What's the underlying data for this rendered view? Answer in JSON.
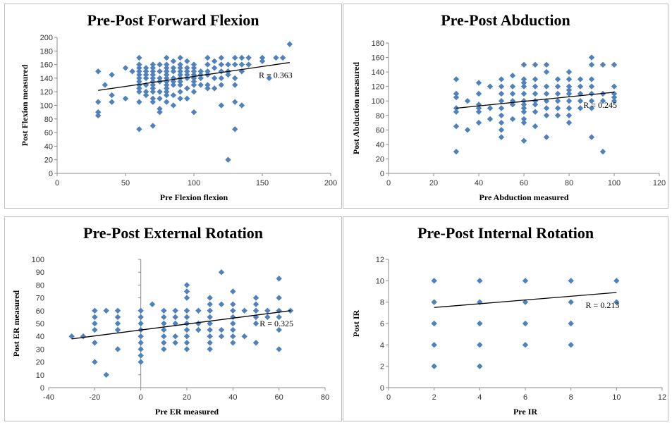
{
  "colors": {
    "marker": "#4f81bd",
    "trend": "#000000",
    "axis": "#8c8c8c"
  },
  "chart_data": [
    {
      "type": "scatter",
      "title": "Pre-Post Forward Flexion",
      "xlabel": "Pre Flexion flexion",
      "ylabel": "Post Flexion measured",
      "xlim": [
        0,
        200
      ],
      "ylim": [
        0,
        200
      ],
      "xticks": [
        0,
        50,
        100,
        150,
        200
      ],
      "yticks": [
        0,
        20,
        40,
        60,
        80,
        100,
        120,
        140,
        160,
        180,
        200
      ],
      "annotation": "R = 0.363",
      "trend": [
        [
          30,
          122
        ],
        [
          170,
          163
        ]
      ],
      "points": [
        [
          30,
          150
        ],
        [
          30,
          105
        ],
        [
          30,
          90
        ],
        [
          30,
          85
        ],
        [
          35,
          130
        ],
        [
          40,
          145
        ],
        [
          40,
          115
        ],
        [
          40,
          105
        ],
        [
          50,
          155
        ],
        [
          50,
          110
        ],
        [
          55,
          150
        ],
        [
          60,
          170
        ],
        [
          60,
          160
        ],
        [
          60,
          155
        ],
        [
          60,
          150
        ],
        [
          60,
          145
        ],
        [
          60,
          140
        ],
        [
          60,
          135
        ],
        [
          60,
          130
        ],
        [
          60,
          125
        ],
        [
          60,
          120
        ],
        [
          60,
          105
        ],
        [
          60,
          65
        ],
        [
          65,
          155
        ],
        [
          65,
          150
        ],
        [
          65,
          145
        ],
        [
          65,
          140
        ],
        [
          65,
          130
        ],
        [
          65,
          120
        ],
        [
          65,
          115
        ],
        [
          70,
          160
        ],
        [
          70,
          155
        ],
        [
          70,
          150
        ],
        [
          70,
          145
        ],
        [
          70,
          140
        ],
        [
          70,
          135
        ],
        [
          70,
          130
        ],
        [
          70,
          125
        ],
        [
          70,
          120
        ],
        [
          70,
          110
        ],
        [
          70,
          105
        ],
        [
          70,
          70
        ],
        [
          75,
          160
        ],
        [
          75,
          150
        ],
        [
          75,
          140
        ],
        [
          75,
          135
        ],
        [
          75,
          120
        ],
        [
          75,
          110
        ],
        [
          75,
          95
        ],
        [
          75,
          90
        ],
        [
          80,
          170
        ],
        [
          80,
          160
        ],
        [
          80,
          155
        ],
        [
          80,
          150
        ],
        [
          80,
          145
        ],
        [
          80,
          140
        ],
        [
          80,
          135
        ],
        [
          80,
          130
        ],
        [
          80,
          125
        ],
        [
          80,
          120
        ],
        [
          80,
          115
        ],
        [
          80,
          105
        ],
        [
          85,
          165
        ],
        [
          85,
          155
        ],
        [
          85,
          150
        ],
        [
          85,
          140
        ],
        [
          85,
          135
        ],
        [
          85,
          130
        ],
        [
          85,
          115
        ],
        [
          85,
          100
        ],
        [
          90,
          170
        ],
        [
          90,
          160
        ],
        [
          90,
          155
        ],
        [
          90,
          150
        ],
        [
          90,
          145
        ],
        [
          90,
          140
        ],
        [
          90,
          135
        ],
        [
          90,
          130
        ],
        [
          90,
          120
        ],
        [
          90,
          110
        ],
        [
          95,
          165
        ],
        [
          95,
          155
        ],
        [
          95,
          150
        ],
        [
          95,
          145
        ],
        [
          95,
          140
        ],
        [
          95,
          125
        ],
        [
          95,
          110
        ],
        [
          100,
          160
        ],
        [
          100,
          155
        ],
        [
          100,
          150
        ],
        [
          100,
          145
        ],
        [
          100,
          140
        ],
        [
          100,
          135
        ],
        [
          100,
          130
        ],
        [
          100,
          120
        ],
        [
          100,
          90
        ],
        [
          105,
          150
        ],
        [
          105,
          145
        ],
        [
          105,
          140
        ],
        [
          105,
          130
        ],
        [
          110,
          170
        ],
        [
          110,
          160
        ],
        [
          110,
          150
        ],
        [
          110,
          145
        ],
        [
          110,
          130
        ],
        [
          110,
          125
        ],
        [
          115,
          165
        ],
        [
          115,
          155
        ],
        [
          115,
          140
        ],
        [
          115,
          125
        ],
        [
          120,
          170
        ],
        [
          120,
          160
        ],
        [
          120,
          150
        ],
        [
          120,
          140
        ],
        [
          120,
          130
        ],
        [
          120,
          100
        ],
        [
          125,
          160
        ],
        [
          125,
          150
        ],
        [
          125,
          145
        ],
        [
          125,
          20
        ],
        [
          130,
          170
        ],
        [
          130,
          160
        ],
        [
          130,
          140
        ],
        [
          130,
          130
        ],
        [
          130,
          105
        ],
        [
          130,
          65
        ],
        [
          135,
          170
        ],
        [
          135,
          160
        ],
        [
          135,
          150
        ],
        [
          135,
          100
        ],
        [
          140,
          170
        ],
        [
          140,
          160
        ],
        [
          150,
          170
        ],
        [
          150,
          165
        ],
        [
          155,
          140
        ],
        [
          160,
          170
        ],
        [
          165,
          170
        ],
        [
          170,
          190
        ]
      ]
    },
    {
      "type": "scatter",
      "title": "Pre-Post Abduction",
      "xlabel": "Pre Abduction measured",
      "ylabel": "Post Abduction measured",
      "xlim": [
        0,
        120
      ],
      "ylim": [
        0,
        180
      ],
      "xticks": [
        0,
        20,
        40,
        60,
        80,
        100,
        120
      ],
      "yticks": [
        0,
        20,
        40,
        60,
        80,
        100,
        120,
        140,
        160,
        180
      ],
      "annotation": "R = 0.245",
      "trend": [
        [
          30,
          90
        ],
        [
          100,
          112
        ]
      ],
      "points": [
        [
          30,
          130
        ],
        [
          30,
          110
        ],
        [
          30,
          105
        ],
        [
          30,
          90
        ],
        [
          30,
          85
        ],
        [
          30,
          65
        ],
        [
          30,
          30
        ],
        [
          35,
          100
        ],
        [
          35,
          60
        ],
        [
          40,
          125
        ],
        [
          40,
          110
        ],
        [
          40,
          95
        ],
        [
          40,
          90
        ],
        [
          40,
          85
        ],
        [
          40,
          70
        ],
        [
          45,
          120
        ],
        [
          45,
          90
        ],
        [
          45,
          75
        ],
        [
          50,
          130
        ],
        [
          50,
          120
        ],
        [
          50,
          110
        ],
        [
          50,
          100
        ],
        [
          50,
          90
        ],
        [
          50,
          80
        ],
        [
          50,
          70
        ],
        [
          50,
          60
        ],
        [
          50,
          50
        ],
        [
          55,
          135
        ],
        [
          55,
          120
        ],
        [
          55,
          110
        ],
        [
          55,
          100
        ],
        [
          55,
          95
        ],
        [
          55,
          75
        ],
        [
          60,
          150
        ],
        [
          60,
          130
        ],
        [
          60,
          125
        ],
        [
          60,
          120
        ],
        [
          60,
          110
        ],
        [
          60,
          100
        ],
        [
          60,
          95
        ],
        [
          60,
          90
        ],
        [
          60,
          85
        ],
        [
          60,
          75
        ],
        [
          60,
          70
        ],
        [
          60,
          45
        ],
        [
          65,
          150
        ],
        [
          65,
          130
        ],
        [
          65,
          120
        ],
        [
          65,
          110
        ],
        [
          65,
          100
        ],
        [
          65,
          95
        ],
        [
          65,
          85
        ],
        [
          65,
          65
        ],
        [
          70,
          150
        ],
        [
          70,
          140
        ],
        [
          70,
          120
        ],
        [
          70,
          110
        ],
        [
          70,
          100
        ],
        [
          70,
          90
        ],
        [
          70,
          80
        ],
        [
          70,
          50
        ],
        [
          75,
          130
        ],
        [
          75,
          120
        ],
        [
          75,
          110
        ],
        [
          75,
          100
        ],
        [
          75,
          90
        ],
        [
          75,
          80
        ],
        [
          80,
          140
        ],
        [
          80,
          130
        ],
        [
          80,
          120
        ],
        [
          80,
          115
        ],
        [
          80,
          110
        ],
        [
          80,
          100
        ],
        [
          80,
          90
        ],
        [
          80,
          80
        ],
        [
          80,
          70
        ],
        [
          85,
          130
        ],
        [
          85,
          120
        ],
        [
          85,
          110
        ],
        [
          85,
          100
        ],
        [
          85,
          90
        ],
        [
          90,
          160
        ],
        [
          90,
          150
        ],
        [
          90,
          130
        ],
        [
          90,
          120
        ],
        [
          90,
          110
        ],
        [
          90,
          100
        ],
        [
          90,
          90
        ],
        [
          90,
          50
        ],
        [
          95,
          150
        ],
        [
          95,
          110
        ],
        [
          95,
          100
        ],
        [
          95,
          30
        ],
        [
          100,
          150
        ],
        [
          100,
          120
        ],
        [
          100,
          110
        ],
        [
          100,
          105
        ],
        [
          100,
          100
        ]
      ]
    },
    {
      "type": "scatter",
      "title": "Pre-Post External Rotation",
      "xlabel": "Pre ER measured",
      "ylabel": "Post ER measured",
      "xlim": [
        -40,
        80
      ],
      "ylim": [
        0,
        100
      ],
      "xticks": [
        -40,
        -20,
        0,
        20,
        40,
        60,
        80
      ],
      "yticks": [
        0,
        10,
        20,
        30,
        40,
        50,
        60,
        70,
        80,
        90,
        100
      ],
      "annotation": "R = 0.325",
      "trend": [
        [
          -30,
          38
        ],
        [
          65,
          60
        ]
      ],
      "points": [
        [
          -30,
          40
        ],
        [
          -25,
          40
        ],
        [
          -20,
          60
        ],
        [
          -20,
          55
        ],
        [
          -20,
          50
        ],
        [
          -20,
          45
        ],
        [
          -20,
          35
        ],
        [
          -20,
          20
        ],
        [
          -15,
          60
        ],
        [
          -15,
          10
        ],
        [
          -10,
          60
        ],
        [
          -10,
          55
        ],
        [
          -10,
          50
        ],
        [
          -10,
          45
        ],
        [
          -10,
          30
        ],
        [
          0,
          60
        ],
        [
          0,
          55
        ],
        [
          0,
          50
        ],
        [
          0,
          45
        ],
        [
          0,
          40
        ],
        [
          0,
          35
        ],
        [
          0,
          30
        ],
        [
          0,
          25
        ],
        [
          0,
          20
        ],
        [
          5,
          65
        ],
        [
          10,
          60
        ],
        [
          10,
          55
        ],
        [
          10,
          50
        ],
        [
          10,
          45
        ],
        [
          10,
          40
        ],
        [
          10,
          35
        ],
        [
          10,
          30
        ],
        [
          15,
          60
        ],
        [
          15,
          55
        ],
        [
          15,
          50
        ],
        [
          15,
          40
        ],
        [
          15,
          35
        ],
        [
          20,
          80
        ],
        [
          20,
          75
        ],
        [
          20,
          70
        ],
        [
          20,
          60
        ],
        [
          20,
          55
        ],
        [
          20,
          50
        ],
        [
          20,
          45
        ],
        [
          20,
          40
        ],
        [
          20,
          35
        ],
        [
          20,
          30
        ],
        [
          25,
          60
        ],
        [
          25,
          50
        ],
        [
          25,
          45
        ],
        [
          30,
          70
        ],
        [
          30,
          65
        ],
        [
          30,
          60
        ],
        [
          30,
          55
        ],
        [
          30,
          50
        ],
        [
          30,
          45
        ],
        [
          30,
          40
        ],
        [
          30,
          35
        ],
        [
          30,
          30
        ],
        [
          35,
          90
        ],
        [
          35,
          65
        ],
        [
          35,
          45
        ],
        [
          35,
          40
        ],
        [
          40,
          75
        ],
        [
          40,
          65
        ],
        [
          40,
          60
        ],
        [
          40,
          55
        ],
        [
          40,
          50
        ],
        [
          40,
          45
        ],
        [
          40,
          40
        ],
        [
          40,
          35
        ],
        [
          45,
          60
        ],
        [
          45,
          40
        ],
        [
          50,
          70
        ],
        [
          50,
          65
        ],
        [
          50,
          60
        ],
        [
          50,
          55
        ],
        [
          50,
          50
        ],
        [
          50,
          35
        ],
        [
          55,
          60
        ],
        [
          55,
          55
        ],
        [
          60,
          85
        ],
        [
          60,
          70
        ],
        [
          60,
          60
        ],
        [
          60,
          55
        ],
        [
          60,
          45
        ],
        [
          60,
          30
        ],
        [
          65,
          60
        ]
      ]
    },
    {
      "type": "scatter",
      "title": "Pre-Post Internal Rotation",
      "xlabel": "Pre IR",
      "ylabel": "Post IR",
      "xlim": [
        0,
        12
      ],
      "ylim": [
        0,
        12
      ],
      "xticks": [
        0,
        2,
        4,
        6,
        8,
        10,
        12
      ],
      "yticks": [
        0,
        2,
        4,
        6,
        8,
        10,
        12
      ],
      "annotation": "R = 0.213",
      "trend": [
        [
          2,
          7.5
        ],
        [
          10,
          8.9
        ]
      ],
      "points": [
        [
          2,
          10
        ],
        [
          2,
          8
        ],
        [
          2,
          6
        ],
        [
          2,
          4
        ],
        [
          2,
          2
        ],
        [
          4,
          10
        ],
        [
          4,
          8
        ],
        [
          4,
          6
        ],
        [
          4,
          4
        ],
        [
          4,
          2
        ],
        [
          6,
          10
        ],
        [
          6,
          8
        ],
        [
          6,
          6
        ],
        [
          6,
          4
        ],
        [
          8,
          10
        ],
        [
          8,
          8
        ],
        [
          8,
          6
        ],
        [
          8,
          4
        ],
        [
          10,
          10
        ],
        [
          10,
          8
        ]
      ]
    }
  ]
}
